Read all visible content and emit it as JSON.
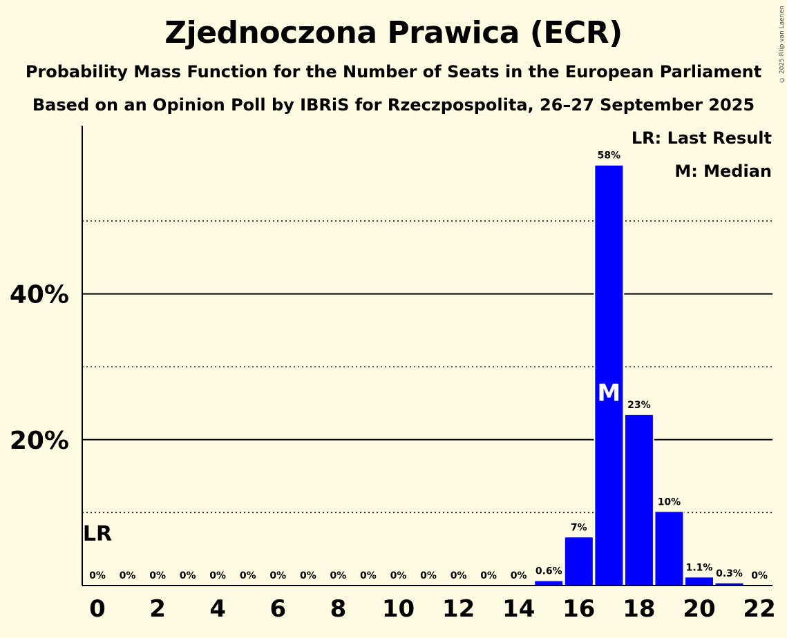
{
  "title": "Zjednoczona Prawica (ECR)",
  "subtitle1": "Probability Mass Function for the Number of Seats in the European Parliament",
  "subtitle2": "Based on an Opinion Poll by IBRiS for Rzeczpospolita, 26–27 September 2025",
  "copyright": "© 2025 Filip van Laenen",
  "legend": {
    "last_result": "LR: Last Result",
    "median": "M: Median"
  },
  "colors": {
    "bar": "#0000ff",
    "background": "#fffbe2"
  },
  "chart_data": {
    "type": "bar",
    "x": [
      0,
      1,
      2,
      3,
      4,
      5,
      6,
      7,
      8,
      9,
      10,
      11,
      12,
      13,
      14,
      15,
      16,
      17,
      18,
      19,
      20,
      21,
      22
    ],
    "values": [
      0,
      0,
      0,
      0,
      0,
      0,
      0,
      0,
      0,
      0,
      0,
      0,
      0,
      0,
      0,
      0.6,
      6.6,
      57.6,
      23.4,
      10.1,
      1.1,
      0.3,
      0
    ],
    "labels": [
      "0%",
      "0%",
      "0%",
      "0%",
      "0%",
      "0%",
      "0%",
      "0%",
      "0%",
      "0%",
      "0%",
      "0%",
      "0%",
      "0%",
      "0%",
      "0.6%",
      "7%",
      "58%",
      "23%",
      "10%",
      "1.1%",
      "0.3%",
      "0%"
    ],
    "xticks": [
      0,
      2,
      4,
      6,
      8,
      10,
      12,
      14,
      16,
      18,
      20,
      22
    ],
    "yticks": [
      20,
      40
    ],
    "ytick_labels": [
      "20%",
      "40%"
    ],
    "ylim": [
      0,
      63
    ],
    "median": 17,
    "median_label": "M",
    "last_result": 0,
    "last_result_label": "LR"
  }
}
